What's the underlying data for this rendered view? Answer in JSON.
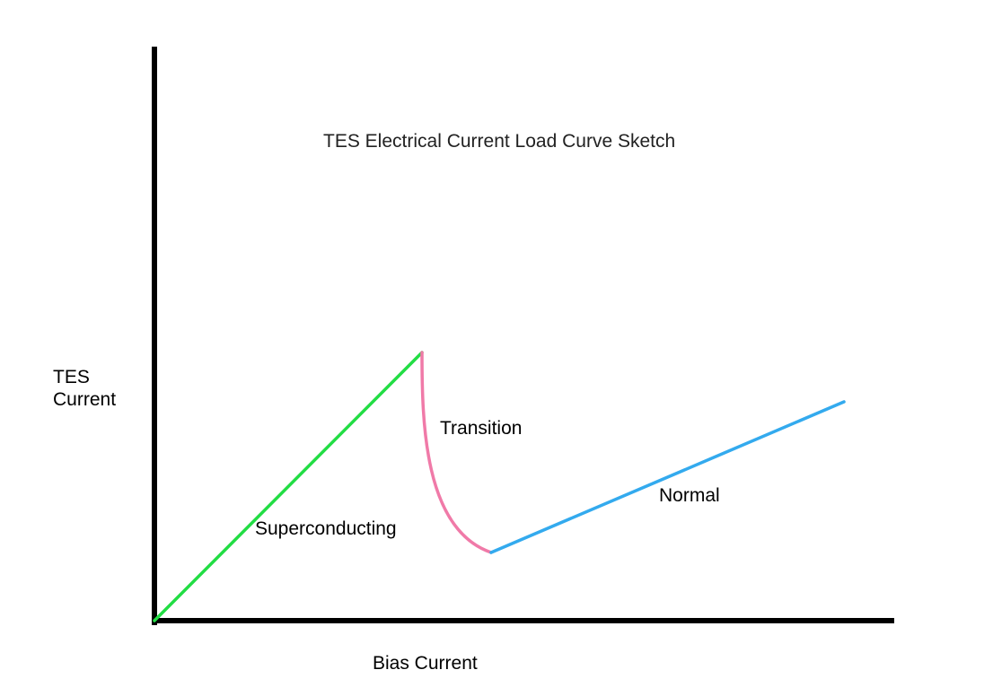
{
  "title": "TES Electrical Current Load Curve Sketch",
  "axes": {
    "x_label": "Bias Current",
    "y_label_line1": "TES",
    "y_label_line2": "Current",
    "color": "#000000"
  },
  "regions": [
    {
      "key": "superconducting",
      "label": "Superconducting",
      "color": "#22dd44"
    },
    {
      "key": "transition",
      "label": "Transition",
      "color": "#f07aa8"
    },
    {
      "key": "normal",
      "label": "Normal",
      "color": "#33aaee"
    }
  ]
}
